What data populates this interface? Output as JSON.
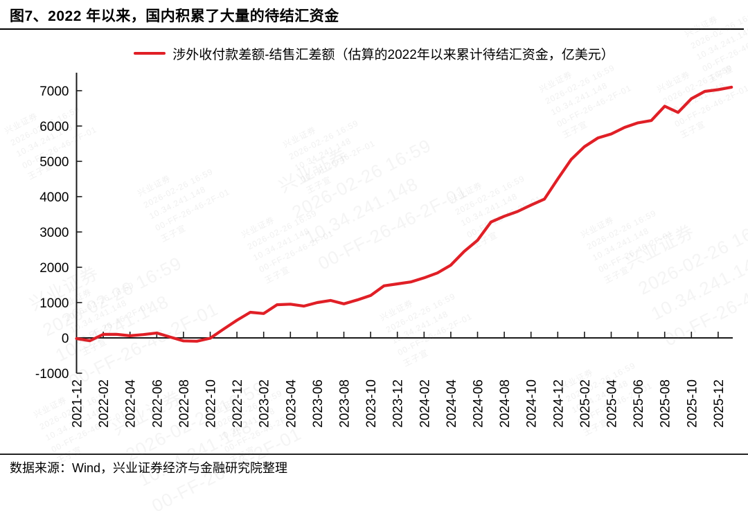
{
  "page": {
    "title": "图7、2022 年以来，国内积累了大量的待结汇资金",
    "source": "数据来源：Wind，兴业证券经济与金融研究院整理"
  },
  "legend": {
    "label": "涉外收付款差额-结售汇差额（估算的2022年以来累计待结汇资金，亿美元）"
  },
  "colors": {
    "line": "#E01F26",
    "axis": "#1A1A1A",
    "text": "#000000"
  },
  "watermark": {
    "lines": [
      "兴业证券",
      "2026-02-26 16:59",
      "10.34.241.148",
      "00-FF-26-46-2F-01",
      "王子宣"
    ]
  },
  "chart_data": {
    "type": "line",
    "title": "",
    "xlabel": "",
    "ylabel": "",
    "grid": false,
    "legend_position": "top-center",
    "x_axis_at_zero": true,
    "ylim": [
      -1000,
      7500
    ],
    "y_ticks": [
      -1000,
      0,
      1000,
      2000,
      3000,
      4000,
      5000,
      6000,
      7000
    ],
    "x": [
      "2021-12",
      "2022-01",
      "2022-02",
      "2022-03",
      "2022-04",
      "2022-05",
      "2022-06",
      "2022-07",
      "2022-08",
      "2022-09",
      "2022-10",
      "2022-11",
      "2022-12",
      "2023-01",
      "2023-02",
      "2023-03",
      "2023-04",
      "2023-05",
      "2023-06",
      "2023-07",
      "2023-08",
      "2023-09",
      "2023-10",
      "2023-11",
      "2023-12",
      "2024-01",
      "2024-02",
      "2024-03",
      "2024-04",
      "2024-05",
      "2024-06",
      "2024-07",
      "2024-08",
      "2024-09",
      "2024-10",
      "2024-11",
      "2024-12",
      "2025-01",
      "2025-02",
      "2025-03",
      "2025-04",
      "2025-05",
      "2025-06",
      "2025-07",
      "2025-08",
      "2025-09",
      "2025-10",
      "2025-11",
      "2025-12",
      "2026-01"
    ],
    "x_tick_labels": [
      "2021-12",
      "2022-02",
      "2022-04",
      "2022-06",
      "2022-08",
      "2022-10",
      "2022-12",
      "2023-02",
      "2023-04",
      "2023-06",
      "2023-08",
      "2023-10",
      "2023-12",
      "2024-02",
      "2024-04",
      "2024-06",
      "2024-08",
      "2024-10",
      "2024-12",
      "2025-02",
      "2025-04",
      "2025-06",
      "2025-08",
      "2025-10",
      "2025-12"
    ],
    "series": [
      {
        "name": "涉外收付款差额-结售汇差额（估算的2022年以来累计待结汇资金，亿美元）",
        "color": "#E01F26",
        "values": [
          -20,
          -80,
          100,
          100,
          60,
          95,
          140,
          25,
          -85,
          -95,
          -10,
          250,
          500,
          725,
          690,
          940,
          955,
          900,
          1000,
          1060,
          965,
          1075,
          1200,
          1475,
          1530,
          1585,
          1700,
          1840,
          2060,
          2450,
          2765,
          3280,
          3445,
          3580,
          3760,
          3930,
          4500,
          5050,
          5415,
          5660,
          5775,
          5960,
          6090,
          6155,
          6560,
          6385,
          6775,
          6980,
          7030,
          7100
        ]
      }
    ]
  }
}
